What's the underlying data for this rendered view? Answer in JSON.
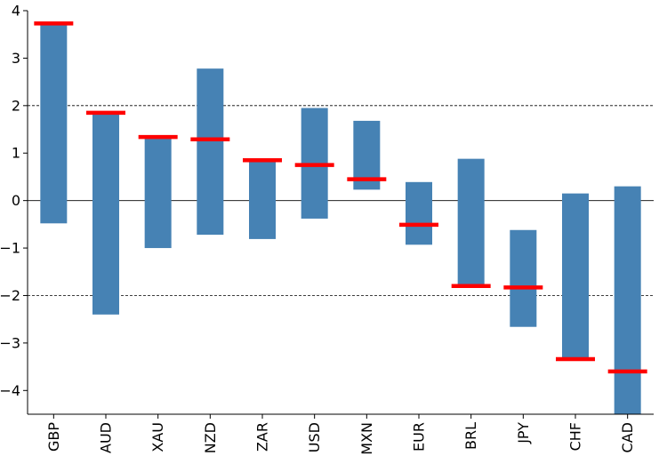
{
  "chart_data": {
    "type": "bar",
    "categories": [
      "GBP",
      "AUD",
      "XAU",
      "NZD",
      "ZAR",
      "USD",
      "MXN",
      "EUR",
      "BRL",
      "JPY",
      "CHF",
      "CAD"
    ],
    "series": [
      {
        "values_low": [
          -0.48,
          -2.4,
          -1.0,
          -0.72,
          -0.81,
          -0.38,
          0.23,
          -0.93,
          -1.82,
          -2.66,
          -3.36,
          -4.5
        ],
        "values_high": [
          3.75,
          1.85,
          1.35,
          2.78,
          0.85,
          1.95,
          1.68,
          0.39,
          0.88,
          -0.62,
          0.15,
          0.3
        ]
      },
      {
        "values": [
          3.73,
          1.85,
          1.34,
          1.29,
          0.85,
          0.75,
          0.45,
          -0.51,
          -1.8,
          -1.83,
          -3.34,
          -3.6
        ]
      }
    ],
    "yticks": [
      4,
      3,
      2,
      1,
      0,
      -1,
      -2,
      -3,
      -4
    ],
    "ytick_labels": [
      "4",
      "3",
      "2",
      "1",
      "0",
      "−1",
      "−2",
      "−3",
      "−4"
    ],
    "ylim": [
      -4.5,
      4.0
    ],
    "reference_lines": {
      "dashed": [
        2,
        -2
      ],
      "solid": [
        0
      ]
    },
    "title": "",
    "xlabel": "",
    "ylabel": "",
    "grid": false,
    "colors": {
      "bar": "#4682b4",
      "marker": "#ff0000",
      "axis": "#000000"
    }
  }
}
